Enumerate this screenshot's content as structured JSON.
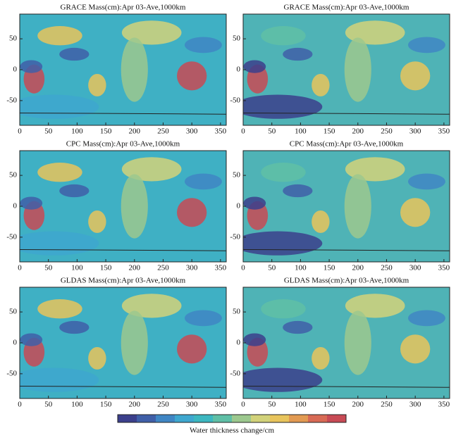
{
  "axes": {
    "xlim": [
      0,
      360
    ],
    "ylim": [
      -90,
      90
    ],
    "xticks": [
      0,
      50,
      100,
      150,
      200,
      250,
      300,
      350
    ],
    "yticks": [
      50,
      0,
      -50
    ]
  },
  "panels": [
    {
      "title": "GRACE Mass(cm):Apr 03-Ave,1000km"
    },
    {
      "title": "GRACE Mass(cm):Apr 03-Ave,1000km"
    },
    {
      "title": "CPC Mass(cm):Apr 03-Ave,1000km"
    },
    {
      "title": "CPC Mass(cm):Apr 03-Ave,1000km"
    },
    {
      "title": "GLDAS Mass(cm):Apr 03-Ave,1000km"
    },
    {
      "title": "GLDAS Mass(cm):Apr 03-Ave,1000km"
    }
  ],
  "colorbar": {
    "label": "Water thickness change/cm",
    "colors": [
      "#3b3f8c",
      "#3f5fa8",
      "#3f86c4",
      "#3ea7cf",
      "#3cb7c0",
      "#5fbfa6",
      "#9cc88e",
      "#d2d27a",
      "#e8c45c",
      "#e29a52",
      "#d86a55",
      "#c84a55"
    ]
  }
}
